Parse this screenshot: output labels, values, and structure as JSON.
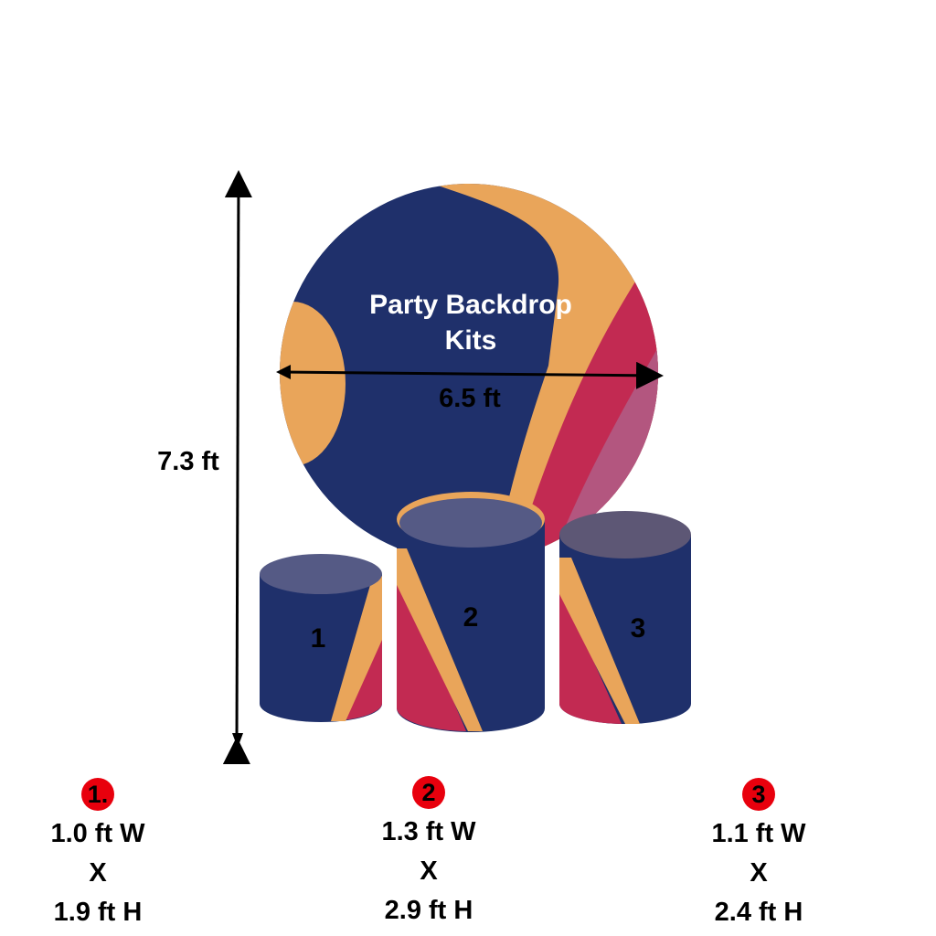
{
  "product": {
    "backdrop_text_line1": "Party Backdrop",
    "backdrop_text_line2": "Kits",
    "height_label": "7.3 ft",
    "width_label": "6.5 ft",
    "cylinder_numbers": [
      "1",
      "2",
      "3"
    ]
  },
  "colors": {
    "navy": "#1f306b",
    "orange": "#e9a55a",
    "crimson": "#c22a52",
    "pink": "#b3567f",
    "badge_red": "#e8000d"
  },
  "specs": [
    {
      "badge": "1.",
      "width": "1.0 ft W",
      "x": "X",
      "height": "1.9 ft H"
    },
    {
      "badge": "2",
      "width": "1.3 ft W",
      "x": "X",
      "height": "2.9 ft H"
    },
    {
      "badge": "3",
      "width": "1.1 ft W",
      "x": "X",
      "height": "2.4 ft H"
    }
  ]
}
